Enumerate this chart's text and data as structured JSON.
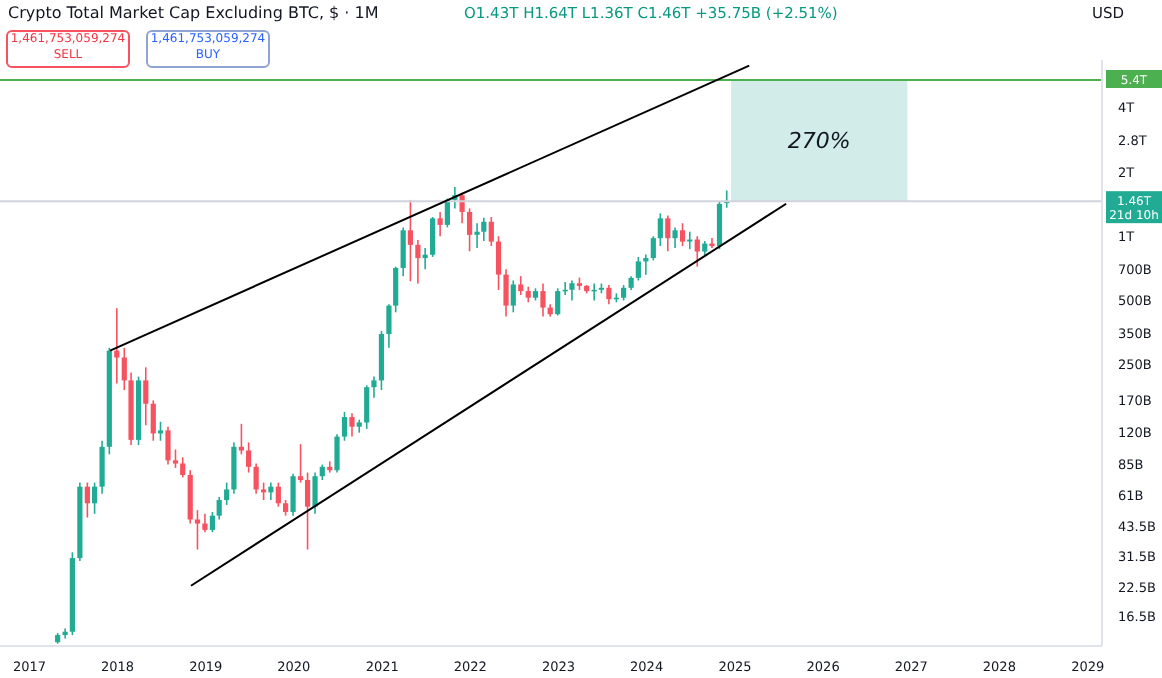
{
  "chart_data": {
    "type": "candlestick",
    "title": "Crypto Total Market Cap Excluding BTC, $ · 1M",
    "annotations": [
      "O1.43T H1.64T L1.36T C1.46T +35.75B (+2.51%)",
      "1,461,753,059,274",
      "SELL",
      "1,461,753,059,274",
      "BUY",
      "USD",
      "21d 10h"
    ],
    "x": [
      "2017-05",
      "2017-06",
      "2017-07",
      "2017-08",
      "2017-09",
      "2017-10",
      "2017-11",
      "2017-12",
      "2018-01",
      "2018-02",
      "2018-03",
      "2018-04",
      "2018-05",
      "2018-06",
      "2018-07",
      "2018-08",
      "2018-09",
      "2018-10",
      "2018-11",
      "2018-12",
      "2019-01",
      "2019-02",
      "2019-03",
      "2019-04",
      "2019-05",
      "2019-06",
      "2019-07",
      "2019-08",
      "2019-09",
      "2019-10",
      "2019-11",
      "2019-12",
      "2020-01",
      "2020-02",
      "2020-03",
      "2020-04",
      "2020-05",
      "2020-06",
      "2020-07",
      "2020-08",
      "2020-09",
      "2020-10",
      "2020-11",
      "2020-12",
      "2021-01",
      "2021-02",
      "2021-03",
      "2021-04",
      "2021-05",
      "2021-06",
      "2021-07",
      "2021-08",
      "2021-09",
      "2021-10",
      "2021-11",
      "2021-12",
      "2022-01",
      "2022-02",
      "2022-03",
      "2022-04",
      "2022-05",
      "2022-06",
      "2022-07",
      "2022-08",
      "2022-09",
      "2022-10",
      "2022-11",
      "2022-12",
      "2023-01",
      "2023-02",
      "2023-03",
      "2023-04",
      "2023-05",
      "2023-06",
      "2023-07",
      "2023-08",
      "2023-09",
      "2023-10",
      "2023-11",
      "2023-12",
      "2024-01",
      "2024-02",
      "2024-03",
      "2024-04",
      "2024-05",
      "2024-06",
      "2024-07",
      "2024-08",
      "2024-09",
      "2024-10",
      "2024-11",
      "2024-12"
    ],
    "ohlc": [
      [
        12500000000.0,
        13800000000.0,
        12300000000.0,
        13500000000.0
      ],
      [
        13500000000.0,
        14500000000.0,
        13000000000.0,
        14000000000.0
      ],
      [
        14000000000.0,
        33000000000.0,
        13500000000.0,
        31000000000.0
      ],
      [
        31000000000.0,
        70000000000.0,
        30000000000.0,
        67000000000.0
      ],
      [
        67000000000.0,
        70000000000.0,
        48000000000.0,
        56000000000.0
      ],
      [
        56000000000.0,
        70000000000.0,
        50000000000.0,
        67000000000.0
      ],
      [
        67000000000.0,
        110000000000.0,
        62000000000.0,
        103000000000.0
      ],
      [
        103000000000.0,
        300000000000.0,
        95000000000.0,
        291000000000.0
      ],
      [
        291000000000.0,
        460000000000.0,
        204000000000.0,
        270000000000.0
      ],
      [
        270000000000.0,
        300000000000.0,
        190000000000.0,
        211000000000.0
      ],
      [
        211000000000.0,
        230000000000.0,
        105000000000.0,
        111000000000.0
      ],
      [
        111000000000.0,
        220000000000.0,
        105000000000.0,
        211000000000.0
      ],
      [
        211000000000.0,
        243000000000.0,
        130000000000.0,
        164000000000.0
      ],
      [
        164000000000.0,
        170000000000.0,
        110000000000.0,
        119000000000.0
      ],
      [
        119000000000.0,
        135000000000.0,
        110000000000.0,
        123000000000.0
      ],
      [
        123000000000.0,
        128000000000.0,
        85000000000.0,
        89000000000.0
      ],
      [
        89000000000.0,
        100000000000.0,
        82000000000.0,
        86000000000.0
      ],
      [
        86000000000.0,
        92000000000.0,
        74000000000.0,
        76000000000.0
      ],
      [
        76000000000.0,
        80000000000.0,
        45000000000.0,
        47000000000.0
      ],
      [
        47000000000.0,
        52000000000.0,
        34000000000.0,
        45000000000.0
      ],
      [
        45000000000.0,
        50000000000.0,
        41000000000.0,
        42000000000.0
      ],
      [
        42000000000.0,
        51000000000.0,
        41000000000.0,
        49000000000.0
      ],
      [
        49000000000.0,
        60000000000.0,
        47000000000.0,
        58000000000.0
      ],
      [
        58000000000.0,
        70000000000.0,
        55000000000.0,
        65000000000.0
      ],
      [
        65000000000.0,
        108000000000.0,
        62000000000.0,
        103000000000.0
      ],
      [
        103000000000.0,
        132000000000.0,
        95000000000.0,
        99000000000.0
      ],
      [
        99000000000.0,
        108000000000.0,
        78000000000.0,
        83000000000.0
      ],
      [
        83000000000.0,
        86000000000.0,
        62000000000.0,
        65000000000.0
      ],
      [
        65000000000.0,
        70000000000.0,
        58000000000.0,
        63000000000.0
      ],
      [
        63000000000.0,
        70000000000.0,
        58000000000.0,
        67000000000.0
      ],
      [
        67000000000.0,
        70000000000.0,
        54000000000.0,
        56000000000.0
      ],
      [
        56000000000.0,
        58000000000.0,
        49000000000.0,
        51000000000.0
      ],
      [
        51000000000.0,
        77000000000.0,
        49000000000.0,
        75000000000.0
      ],
      [
        75000000000.0,
        106000000000.0,
        70000000000.0,
        72000000000.0
      ],
      [
        72000000000.0,
        78000000000.0,
        34000000000.0,
        54000000000.0
      ],
      [
        54000000000.0,
        78000000000.0,
        50000000000.0,
        75000000000.0
      ],
      [
        75000000000.0,
        85000000000.0,
        72000000000.0,
        83000000000.0
      ],
      [
        83000000000.0,
        88000000000.0,
        78000000000.0,
        80000000000.0
      ],
      [
        80000000000.0,
        118000000000.0,
        78000000000.0,
        115000000000.0
      ],
      [
        115000000000.0,
        150000000000.0,
        110000000000.0,
        142000000000.0
      ],
      [
        142000000000.0,
        148000000000.0,
        115000000000.0,
        128000000000.0
      ],
      [
        128000000000.0,
        138000000000.0,
        120000000000.0,
        134000000000.0
      ],
      [
        134000000000.0,
        200000000000.0,
        125000000000.0,
        196000000000.0
      ],
      [
        196000000000.0,
        220000000000.0,
        175000000000.0,
        211000000000.0
      ],
      [
        211000000000.0,
        360000000000.0,
        190000000000.0,
        348000000000.0
      ],
      [
        348000000000.0,
        480000000000.0,
        300000000000.0,
        473000000000.0
      ],
      [
        473000000000.0,
        720000000000.0,
        440000000000.0,
        710000000000.0
      ],
      [
        710000000000.0,
        1100000000000.0,
        650000000000.0,
        1066000000000.0
      ],
      [
        1066000000000.0,
        1480000000000.0,
        615000000000.0,
        911000000000.0
      ],
      [
        911000000000.0,
        960000000000.0,
        600000000000.0,
        790000000000.0
      ],
      [
        790000000000.0,
        880000000000.0,
        700000000000.0,
        819000000000.0
      ],
      [
        819000000000.0,
        1230000000000.0,
        800000000000.0,
        1213000000000.0
      ],
      [
        1213000000000.0,
        1300000000000.0,
        1000000000000.0,
        1130000000000.0
      ],
      [
        1130000000000.0,
        1500000000000.0,
        1100000000000.0,
        1480000000000.0
      ],
      [
        1480000000000.0,
        1700000000000.0,
        1350000000000.0,
        1557000000000.0
      ],
      [
        1557000000000.0,
        1600000000000.0,
        1150000000000.0,
        1300000000000.0
      ],
      [
        1300000000000.0,
        1350000000000.0,
        850000000000.0,
        1015000000000.0
      ],
      [
        1015000000000.0,
        1150000000000.0,
        880000000000.0,
        1050000000000.0
      ],
      [
        1050000000000.0,
        1220000000000.0,
        950000000000.0,
        1169000000000.0
      ],
      [
        1169000000000.0,
        1230000000000.0,
        900000000000.0,
        944000000000.0
      ],
      [
        944000000000.0,
        1000000000000.0,
        560000000000.0,
        661000000000.0
      ],
      [
        661000000000.0,
        700000000000.0,
        420000000000.0,
        473000000000.0
      ],
      [
        473000000000.0,
        620000000000.0,
        440000000000.0,
        594000000000.0
      ],
      [
        594000000000.0,
        650000000000.0,
        530000000000.0,
        553000000000.0
      ],
      [
        553000000000.0,
        580000000000.0,
        490000000000.0,
        515000000000.0
      ],
      [
        515000000000.0,
        570000000000.0,
        500000000000.0,
        553000000000.0
      ],
      [
        553000000000.0,
        600000000000.0,
        420000000000.0,
        463000000000.0
      ],
      [
        463000000000.0,
        480000000000.0,
        420000000000.0,
        431000000000.0
      ],
      [
        431000000000.0,
        570000000000.0,
        425000000000.0,
        553000000000.0
      ],
      [
        553000000000.0,
        610000000000.0,
        530000000000.0,
        561000000000.0
      ],
      [
        561000000000.0,
        620000000000.0,
        500000000000.0,
        602000000000.0
      ],
      [
        602000000000.0,
        640000000000.0,
        560000000000.0,
        585000000000.0
      ],
      [
        585000000000.0,
        590000000000.0,
        540000000000.0,
        553000000000.0
      ],
      [
        553000000000.0,
        600000000000.0,
        500000000000.0,
        561000000000.0
      ],
      [
        561000000000.0,
        600000000000.0,
        540000000000.0,
        573000000000.0
      ],
      [
        573000000000.0,
        590000000000.0,
        480000000000.0,
        507000000000.0
      ],
      [
        507000000000.0,
        540000000000.0,
        490000000000.0,
        515000000000.0
      ],
      [
        515000000000.0,
        590000000000.0,
        500000000000.0,
        573000000000.0
      ],
      [
        573000000000.0,
        650000000000.0,
        560000000000.0,
        638000000000.0
      ],
      [
        638000000000.0,
        800000000000.0,
        620000000000.0,
        762000000000.0
      ],
      [
        762000000000.0,
        820000000000.0,
        660000000000.0,
        790000000000.0
      ],
      [
        790000000000.0,
        1000000000000.0,
        770000000000.0,
        979000000000.0
      ],
      [
        979000000000.0,
        1280000000000.0,
        900000000000.0,
        1213000000000.0
      ],
      [
        1213000000000.0,
        1250000000000.0,
        850000000000.0,
        979000000000.0
      ],
      [
        979000000000.0,
        1100000000000.0,
        880000000000.0,
        1066000000000.0
      ],
      [
        1066000000000.0,
        1150000000000.0,
        900000000000.0,
        944000000000.0
      ],
      [
        944000000000.0,
        1050000000000.0,
        870000000000.0,
        965000000000.0
      ],
      [
        965000000000.0,
        1000000000000.0,
        720000000000.0,
        848000000000.0
      ],
      [
        848000000000.0,
        950000000000.0,
        800000000000.0,
        924000000000.0
      ],
      [
        924000000000.0,
        980000000000.0,
        880000000000.0,
        899000000000.0
      ],
      [
        899000000000.0,
        1450000000000.0,
        870000000000.0,
        1418000000000.0
      ],
      [
        1430000000000.0,
        1640000000000.0,
        1360000000000.0,
        1460000000000.0
      ]
    ],
    "series": [
      {
        "type": "line",
        "color": "#000000",
        "x": [
          "2017-12",
          "2025-03"
        ],
        "values": [
          291000000000.0,
          6300000000000.0
        ]
      },
      {
        "type": "line",
        "color": "#000000",
        "x": [
          "2018-11",
          "2025-08"
        ],
        "values": [
          23000000000.0,
          1420000000000.0
        ]
      }
    ],
    "log": "y",
    "grid": false,
    "legend": false,
    "xlim": [
      "2016-09",
      "2029-03"
    ],
    "xticks": [
      "2017",
      "2018",
      "2019",
      "2020",
      "2021",
      "2022",
      "2023",
      "2024",
      "2025",
      "2026",
      "2027",
      "2028",
      "2029"
    ],
    "ylim": [
      12000000000.0,
      6700000000000.0
    ],
    "yticks": [
      {
        "value": 16500000000.0,
        "label": "16.5B"
      },
      {
        "value": 22500000000.0,
        "label": "22.5B"
      },
      {
        "value": 31500000000.0,
        "label": "31.5B"
      },
      {
        "value": 43500000000.0,
        "label": "43.5B"
      },
      {
        "value": 61000000000.0,
        "label": "61B"
      },
      {
        "value": 85000000000.0,
        "label": "85B"
      },
      {
        "value": 120000000000.0,
        "label": "120B"
      },
      {
        "value": 170000000000.0,
        "label": "170B"
      },
      {
        "value": 250000000000.0,
        "label": "250B"
      },
      {
        "value": 350000000000.0,
        "label": "350B"
      },
      {
        "value": 500000000000.0,
        "label": "500B"
      },
      {
        "value": 700000000000.0,
        "label": "700B"
      },
      {
        "value": 1000000000000.0,
        "label": "1T"
      },
      {
        "value": 2000000000000.0,
        "label": "2T"
      },
      {
        "value": 2800000000000.0,
        "label": "2.8T"
      },
      {
        "value": 4000000000000.0,
        "label": "4T"
      }
    ],
    "ref_lines": [
      {
        "axis": "y",
        "value": 1460000000000.0,
        "label": "1.46T",
        "color": "#d1d4dc"
      },
      {
        "axis": "y",
        "value": 5400000000000.0,
        "label": "5.4T",
        "color": "#4caf50"
      }
    ],
    "bands": [
      {
        "axis": "y",
        "from": 1460000000000.0,
        "to": 5400000000000.0,
        "label": "270%",
        "color": "#b2dfdb"
      }
    ]
  }
}
